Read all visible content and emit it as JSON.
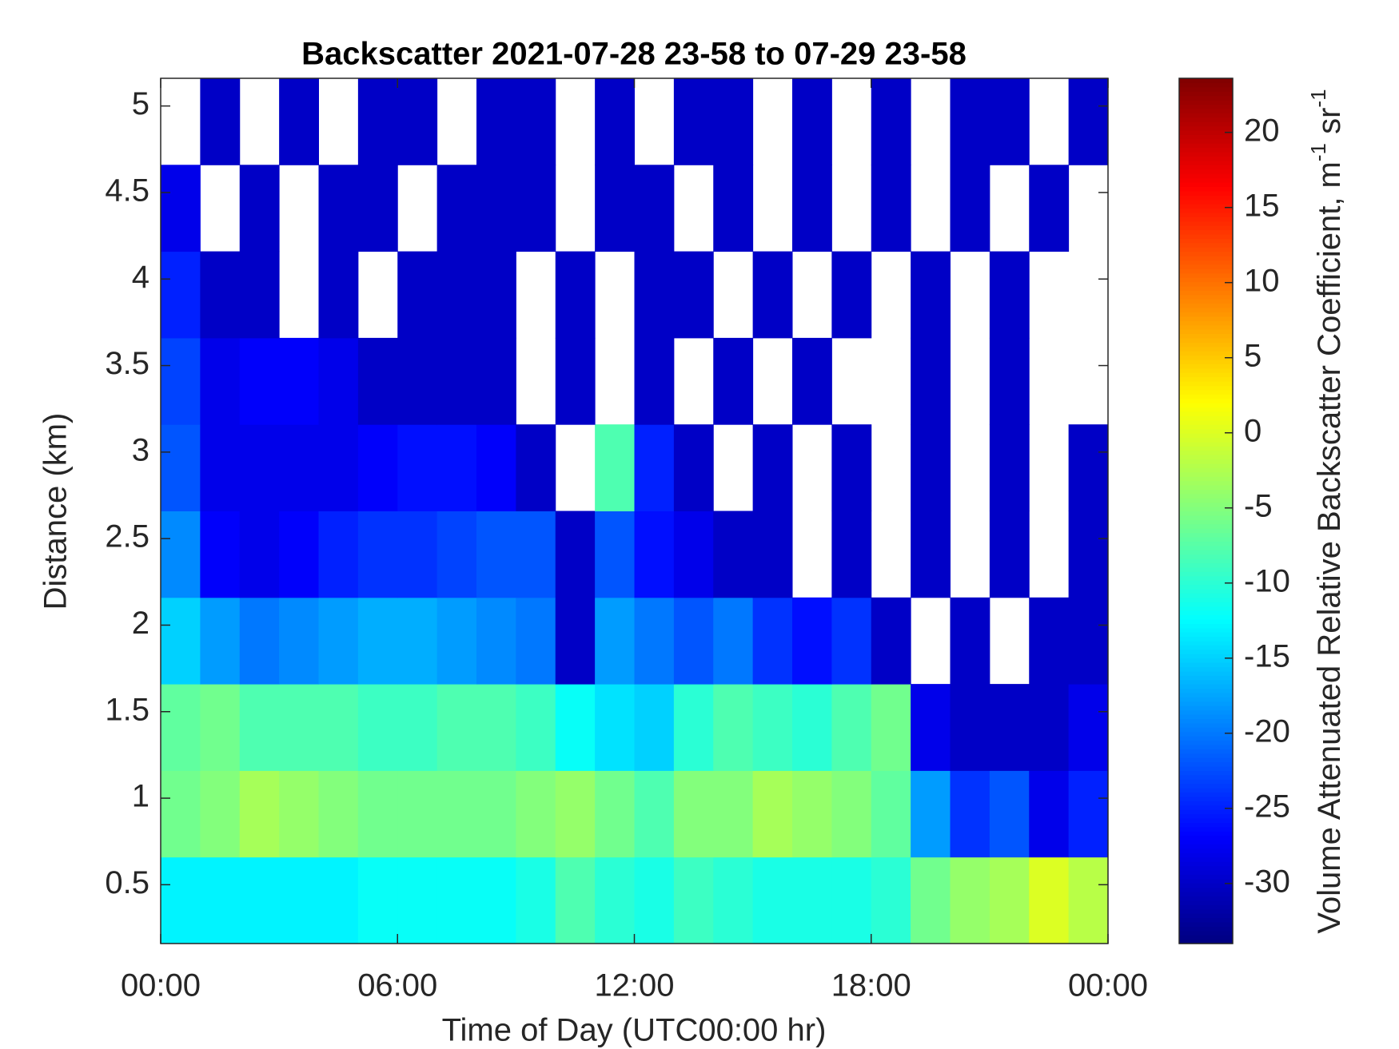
{
  "chart_data": {
    "type": "heatmap",
    "title": "Backscatter 2021-07-28 23-58 to 07-29 23-58",
    "xlabel": "Time of Day (UTC00:00 hr)",
    "ylabel": "Distance (km)",
    "colorbar_label": [
      "Volume Attenuated Relative Backscatter Coefficient, m",
      "-1",
      " sr",
      "-1"
    ],
    "colormap": "jet",
    "x": [
      0.5,
      1.5,
      2.5,
      3.5,
      4.5,
      5.5,
      6.5,
      7.5,
      8.5,
      9.5,
      10.5,
      11.5,
      12.5,
      13.5,
      14.5,
      15.5,
      16.5,
      17.5,
      18.5,
      19.5,
      20.5,
      21.5,
      22.5,
      23.5
    ],
    "y": [
      0.41,
      0.91,
      1.41,
      1.91,
      2.41,
      2.91,
      3.41,
      3.91,
      4.41,
      4.91
    ],
    "z": [
      [
        -13,
        -13,
        -13,
        -13,
        -13,
        -12,
        -12,
        -12,
        -12,
        -11,
        -8,
        -10,
        -11,
        -9,
        -10,
        -11,
        -11,
        -11,
        -10,
        -6,
        -4,
        -3,
        0,
        -2
      ],
      [
        -6,
        -5,
        -3,
        -4,
        -5,
        -6,
        -6,
        -6,
        -6,
        -5,
        -4,
        -6,
        -8,
        -5,
        -5,
        -3,
        -4,
        -5,
        -7,
        -18,
        -24,
        -22,
        -28,
        -25
      ],
      [
        -7,
        -6,
        -8,
        -8,
        -8,
        -9,
        -9,
        -8,
        -8,
        -9,
        -12,
        -14,
        -15,
        -10,
        -8,
        -9,
        -10,
        -8,
        -6,
        -28,
        -30,
        -30,
        -30,
        -28
      ],
      [
        -15,
        -18,
        -20,
        -19,
        -18,
        -17,
        -17,
        -18,
        -19,
        -20,
        -30,
        -18,
        -20,
        -22,
        -20,
        -24,
        -26,
        -24,
        -30,
        null,
        -30,
        null,
        -30,
        -30
      ],
      [
        -19,
        -27,
        -28,
        -27,
        -25,
        -24,
        -24,
        -23,
        -22,
        -22,
        -30,
        -22,
        -26,
        -28,
        -30,
        -30,
        null,
        -30,
        null,
        -30,
        null,
        -30,
        null,
        -30
      ],
      [
        -22,
        -28,
        -28,
        -28,
        -28,
        -27,
        -26,
        -26,
        -27,
        -30,
        null,
        -8,
        -25,
        -30,
        null,
        -30,
        null,
        -30,
        null,
        -30,
        null,
        -30,
        null,
        -30
      ],
      [
        -23,
        -28,
        -27,
        -27,
        -28,
        -30,
        -30,
        -30,
        -30,
        null,
        -30,
        null,
        -30,
        null,
        -30,
        null,
        -30,
        null,
        null,
        -30,
        null,
        -30,
        null,
        null
      ],
      [
        -25,
        -30,
        -30,
        null,
        -30,
        null,
        -30,
        -30,
        -30,
        null,
        -30,
        null,
        -30,
        -30,
        null,
        -30,
        null,
        -30,
        null,
        -30,
        null,
        -30,
        null,
        null
      ],
      [
        -28,
        null,
        -30,
        null,
        -30,
        -30,
        null,
        -30,
        -30,
        -30,
        null,
        -30,
        -30,
        null,
        -30,
        null,
        -30,
        null,
        -30,
        null,
        -30,
        null,
        -30,
        null
      ],
      [
        null,
        -30,
        null,
        -30,
        null,
        -30,
        -30,
        null,
        -30,
        -30,
        null,
        -30,
        null,
        -30,
        -30,
        null,
        -30,
        null,
        -30,
        null,
        -30,
        -30,
        null,
        -30
      ]
    ],
    "xlim": [
      0,
      24
    ],
    "xticks": [
      {
        "value": 0,
        "label": "00:00"
      },
      {
        "value": 6,
        "label": "06:00"
      },
      {
        "value": 12,
        "label": "12:00"
      },
      {
        "value": 18,
        "label": "18:00"
      },
      {
        "value": 24,
        "label": "00:00"
      }
    ],
    "ylim": [
      0.16,
      5.16
    ],
    "yticks": [
      0.5,
      1,
      1.5,
      2,
      2.5,
      3,
      3.5,
      4,
      4.5,
      5
    ],
    "zlim": [
      -34,
      23.6
    ],
    "zticks": [
      -30,
      -25,
      -20,
      -15,
      -10,
      -5,
      0,
      5,
      10,
      15,
      20
    ]
  }
}
